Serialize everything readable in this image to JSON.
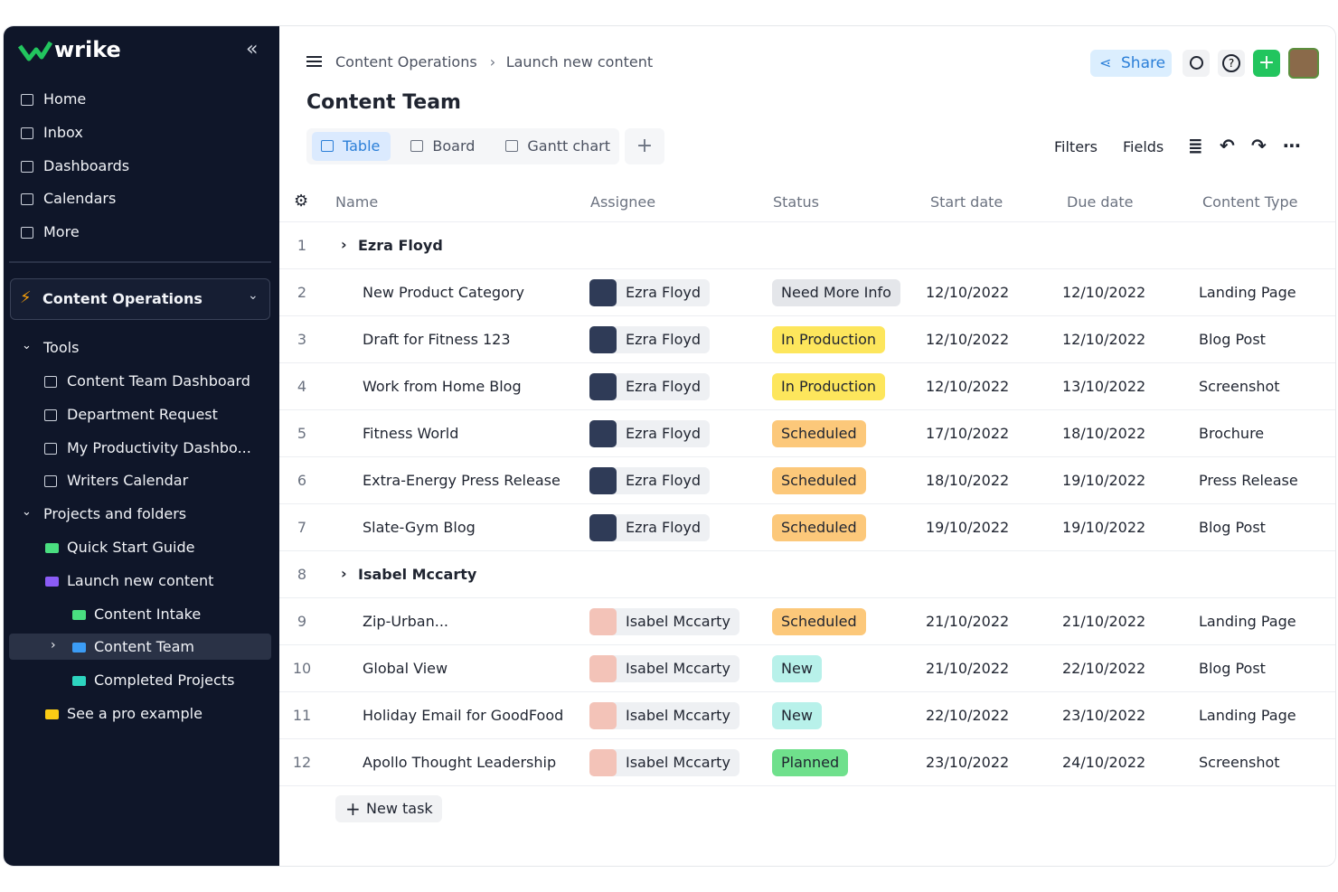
{
  "sidebar": {
    "logo": "wrike",
    "nav": [
      "Home",
      "Inbox",
      "Dashboards",
      "Calendars",
      "More"
    ],
    "space": "Content Operations",
    "tools_label": "Tools",
    "tools": [
      "Content Team Dashboard",
      "Department Request",
      "My Productivity Dashbo...",
      "Writers Calendar"
    ],
    "projects_label": "Projects and folders",
    "projects": [
      {
        "label": "Quick Start Guide",
        "level": 1,
        "color": "#4ade80"
      },
      {
        "label": "Launch new content",
        "level": 1,
        "color": "#8b5cf6"
      },
      {
        "label": "Content Intake",
        "level": 2,
        "color": "#4ade80"
      },
      {
        "label": "Content Team",
        "level": 2,
        "color": "#3b9cf5",
        "selected": true
      },
      {
        "label": "Completed Projects",
        "level": 2,
        "color": "#2dd4bf"
      },
      {
        "label": "See a pro example",
        "level": 1,
        "color": "#facc15"
      }
    ]
  },
  "header": {
    "breadcrumb": [
      "Content Operations",
      "Launch new content"
    ],
    "share": "Share",
    "title": "Content Team"
  },
  "views": [
    "Table",
    "Board",
    "Gantt chart"
  ],
  "toolbar": [
    "Filters",
    "Fields"
  ],
  "table": {
    "columns": [
      "Name",
      "Assignee",
      "Status",
      "Start date",
      "Due date",
      "Content Type"
    ],
    "rows": [
      {
        "num": "1",
        "group": "Ezra Floyd"
      },
      {
        "num": "2",
        "name": "New Product Category",
        "assignee": "Ezra Floyd",
        "status": "Need More Info",
        "status_color": "#e4e6ea",
        "start": "12/10/2022",
        "due": "12/10/2022",
        "type": "Landing Page"
      },
      {
        "num": "3",
        "name": "Draft for Fitness 123",
        "assignee": "Ezra Floyd",
        "status": "In Production",
        "status_color": "#fde65c",
        "start": "12/10/2022",
        "due": "12/10/2022",
        "type": "Blog Post"
      },
      {
        "num": "4",
        "name": "Work from Home Blog",
        "assignee": "Ezra Floyd",
        "status": "In Production",
        "status_color": "#fde65c",
        "start": "12/10/2022",
        "due": "13/10/2022",
        "type": "Screenshot"
      },
      {
        "num": "5",
        "name": "Fitness World",
        "assignee": "Ezra Floyd",
        "status": "Scheduled",
        "status_color": "#fcc87a",
        "start": "17/10/2022",
        "due": "18/10/2022",
        "type": "Brochure"
      },
      {
        "num": "6",
        "name": "Extra-Energy Press Release",
        "assignee": "Ezra Floyd",
        "status": "Scheduled",
        "status_color": "#fcc87a",
        "start": "18/10/2022",
        "due": "19/10/2022",
        "type": "Press Release"
      },
      {
        "num": "7",
        "name": "Slate-Gym Blog",
        "assignee": "Ezra Floyd",
        "status": "Scheduled",
        "status_color": "#fcc87a",
        "start": "19/10/2022",
        "due": "19/10/2022",
        "type": "Blog Post"
      },
      {
        "num": "8",
        "group": "Isabel Mccarty"
      },
      {
        "num": "9",
        "name": "Zip-Urban...",
        "assignee": "Isabel Mccarty",
        "status": "Scheduled",
        "status_color": "#fcc87a",
        "start": "21/10/2022",
        "due": "21/10/2022",
        "type": "Landing Page"
      },
      {
        "num": "10",
        "name": "Global View",
        "assignee": "Isabel Mccarty",
        "status": "New",
        "status_color": "#b8f1ea",
        "start": "21/10/2022",
        "due": "22/10/2022",
        "type": "Blog Post"
      },
      {
        "num": "11",
        "name": "Holiday Email for GoodFood",
        "assignee": "Isabel Mccarty",
        "status": "New",
        "status_color": "#b8f1ea",
        "start": "22/10/2022",
        "due": "23/10/2022",
        "type": "Landing Page"
      },
      {
        "num": "12",
        "name": "Apollo Thought Leadership",
        "assignee": "Isabel Mccarty",
        "status": "Planned",
        "status_color": "#6fe08c",
        "start": "23/10/2022",
        "due": "24/10/2022",
        "type": "Screenshot"
      }
    ]
  },
  "new_task": "New task"
}
